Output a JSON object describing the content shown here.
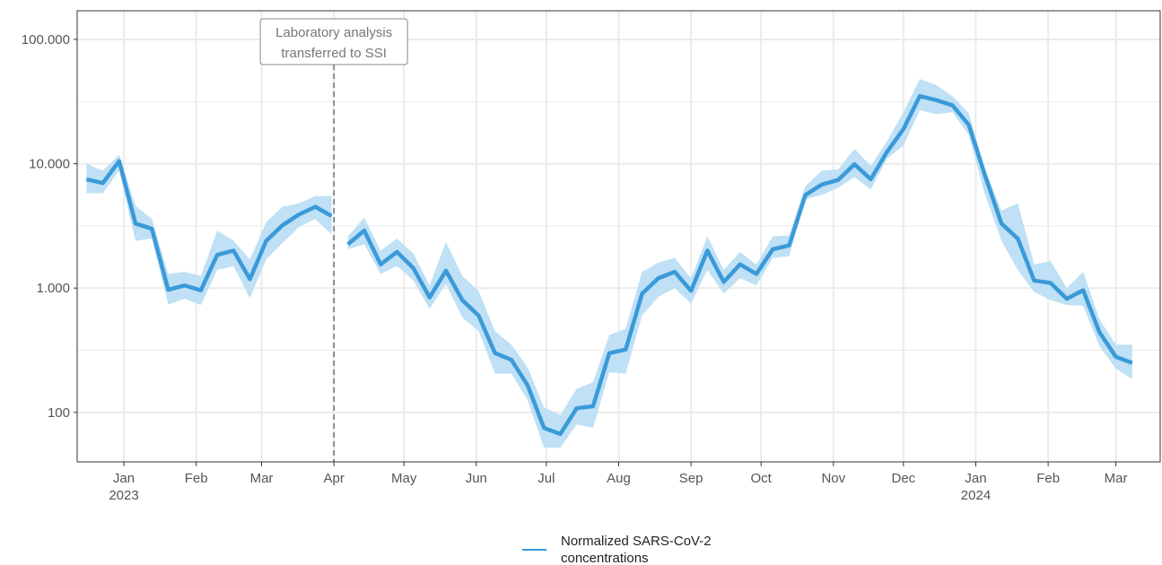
{
  "chart_data": {
    "type": "line",
    "title": "",
    "xlabel": "",
    "ylabel": "",
    "y_scale": "log",
    "ylim": [
      40,
      170000
    ],
    "xlim": [
      "2022-12-12",
      "2024-03-20"
    ],
    "grid": true,
    "legend_position": "bottom",
    "colors": {
      "line": "#3a9ad9",
      "band": "#bfe0f5",
      "grid": "#ebebeb",
      "annotation": "#777777"
    },
    "y_ticks": [
      {
        "value": 100,
        "label": "100"
      },
      {
        "value": 1000,
        "label": "1.000"
      },
      {
        "value": 10000,
        "label": "10.000"
      },
      {
        "value": 100000,
        "label": "100.000"
      }
    ],
    "x_ticks": [
      {
        "date": "2023-01-01",
        "label": "Jan",
        "sublabel": "2023"
      },
      {
        "date": "2023-02-01",
        "label": "Feb",
        "sublabel": ""
      },
      {
        "date": "2023-03-01",
        "label": "Mar",
        "sublabel": ""
      },
      {
        "date": "2023-04-01",
        "label": "Apr",
        "sublabel": ""
      },
      {
        "date": "2023-05-01",
        "label": "May",
        "sublabel": ""
      },
      {
        "date": "2023-06-01",
        "label": "Jun",
        "sublabel": ""
      },
      {
        "date": "2023-07-01",
        "label": "Jul",
        "sublabel": ""
      },
      {
        "date": "2023-08-01",
        "label": "Aug",
        "sublabel": ""
      },
      {
        "date": "2023-09-01",
        "label": "Sep",
        "sublabel": ""
      },
      {
        "date": "2023-10-01",
        "label": "Oct",
        "sublabel": ""
      },
      {
        "date": "2023-11-01",
        "label": "Nov",
        "sublabel": ""
      },
      {
        "date": "2023-12-01",
        "label": "Dec",
        "sublabel": ""
      },
      {
        "date": "2024-01-01",
        "label": "Jan",
        "sublabel": "2024"
      },
      {
        "date": "2024-02-01",
        "label": "Feb",
        "sublabel": ""
      },
      {
        "date": "2024-03-01",
        "label": "Mar",
        "sublabel": ""
      }
    ],
    "annotation": {
      "date": "2023-04-01",
      "lines": [
        "Laboratory analysis",
        "transferred to SSI"
      ]
    },
    "series": [
      {
        "name": "Normalized SARS-CoV-2 concentrations",
        "segments": [
          {
            "x": [
              "2022-12-16",
              "2022-12-23",
              "2022-12-30",
              "2023-01-06",
              "2023-01-13",
              "2023-01-20",
              "2023-01-27",
              "2023-02-03",
              "2023-02-10",
              "2023-02-17",
              "2023-02-24",
              "2023-03-03",
              "2023-03-10",
              "2023-03-17",
              "2023-03-24",
              "2023-03-31"
            ],
            "y": [
              7500,
              7000,
              10500,
              3300,
              3000,
              970,
              1050,
              960,
              1850,
              2000,
              1180,
              2400,
              3200,
              3900,
              4500,
              3800
            ],
            "low": [
              5800,
              5800,
              8800,
              2400,
              2500,
              740,
              820,
              730,
              1400,
              1500,
              830,
              1700,
              2300,
              3100,
              3600,
              2700
            ],
            "high": [
              10000,
              8800,
              11800,
              4600,
              3600,
              1300,
              1350,
              1250,
              2900,
              2400,
              1700,
              3400,
              4500,
              4800,
              5500,
              5500
            ]
          },
          {
            "x": [
              "2023-04-07",
              "2023-04-14",
              "2023-04-21",
              "2023-04-28",
              "2023-05-05",
              "2023-05-12",
              "2023-05-19",
              "2023-05-26",
              "2023-06-02",
              "2023-06-09",
              "2023-06-16",
              "2023-06-23",
              "2023-06-30",
              "2023-07-07",
              "2023-07-14",
              "2023-07-21",
              "2023-07-28",
              "2023-08-04",
              "2023-08-11",
              "2023-08-18",
              "2023-08-25",
              "2023-09-01",
              "2023-09-08",
              "2023-09-15",
              "2023-09-22",
              "2023-09-29",
              "2023-10-06",
              "2023-10-13",
              "2023-10-20",
              "2023-10-27",
              "2023-11-03",
              "2023-11-10",
              "2023-11-17",
              "2023-11-24",
              "2023-12-01",
              "2023-12-08",
              "2023-12-15",
              "2023-12-22",
              "2023-12-29",
              "2024-01-05",
              "2024-01-12",
              "2024-01-19",
              "2024-01-26",
              "2024-02-02",
              "2024-02-09",
              "2024-02-16",
              "2024-02-23",
              "2024-03-01",
              "2024-03-08"
            ],
            "y": [
              2250,
              2900,
              1550,
              1950,
              1450,
              840,
              1380,
              800,
              600,
              300,
              265,
              165,
              75,
              67,
              108,
              112,
              300,
              320,
              900,
              1200,
              1350,
              950,
              2000,
              1120,
              1550,
              1300,
              2050,
              2200,
              5600,
              6800,
              7400,
              9900,
              7500,
              12500,
              19000,
              35000,
              32500,
              29500,
              20500,
              8000,
              3300,
              2500,
              1150,
              1100,
              820,
              960,
              440,
              280,
              250
            ],
            "low": [
              2050,
              2250,
              1300,
              1500,
              1150,
              680,
              1080,
              580,
              450,
              205,
              205,
              125,
              52,
              52,
              80,
              75,
              210,
              205,
              600,
              850,
              1000,
              750,
              1400,
              900,
              1200,
              1050,
              1750,
              1800,
              5200,
              5600,
              6400,
              7800,
              6200,
              11000,
              14000,
              27000,
              25000,
              26000,
              17000,
              5600,
              2400,
              1400,
              930,
              800,
              730,
              720,
              340,
              225,
              185
            ],
            "high": [
              2600,
              3700,
              2000,
              2500,
              1900,
              1050,
              2350,
              1250,
              950,
              450,
              350,
              230,
              110,
              95,
              155,
              175,
              420,
              470,
              1350,
              1600,
              1750,
              1200,
              2600,
              1400,
              1950,
              1550,
              2600,
              2650,
              6600,
              8800,
              9000,
              13200,
              9600,
              15200,
              26000,
              48000,
              43000,
              35000,
              25500,
              9000,
              4200,
              4800,
              1550,
              1650,
              1000,
              1350,
              560,
              350,
              350
            ]
          }
        ]
      }
    ]
  }
}
